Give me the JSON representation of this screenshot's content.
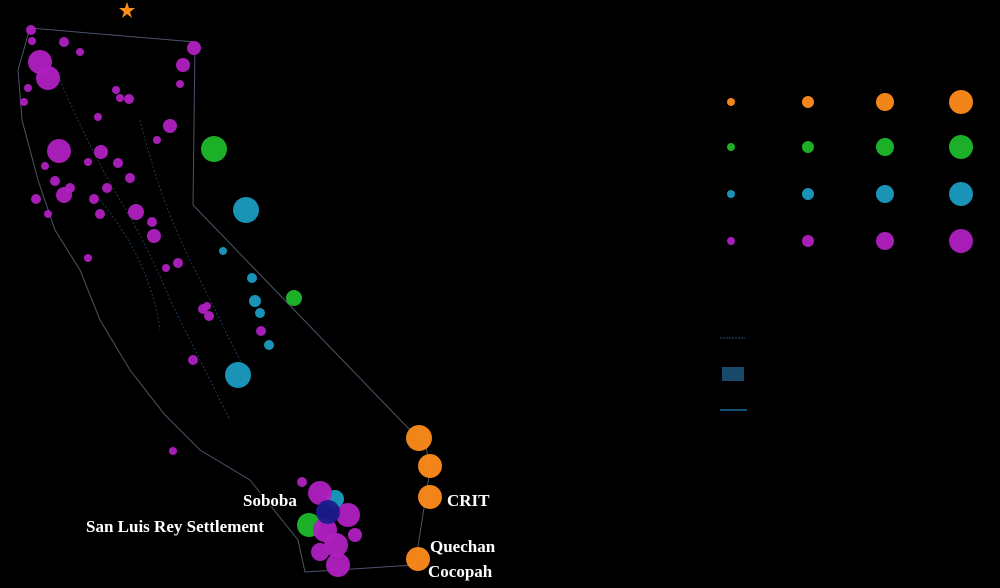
{
  "map": {
    "labels": [
      "Soboba",
      "San Luis Rey Settlement",
      "CRIT",
      "Quechan",
      "Cocopah"
    ]
  }
}
